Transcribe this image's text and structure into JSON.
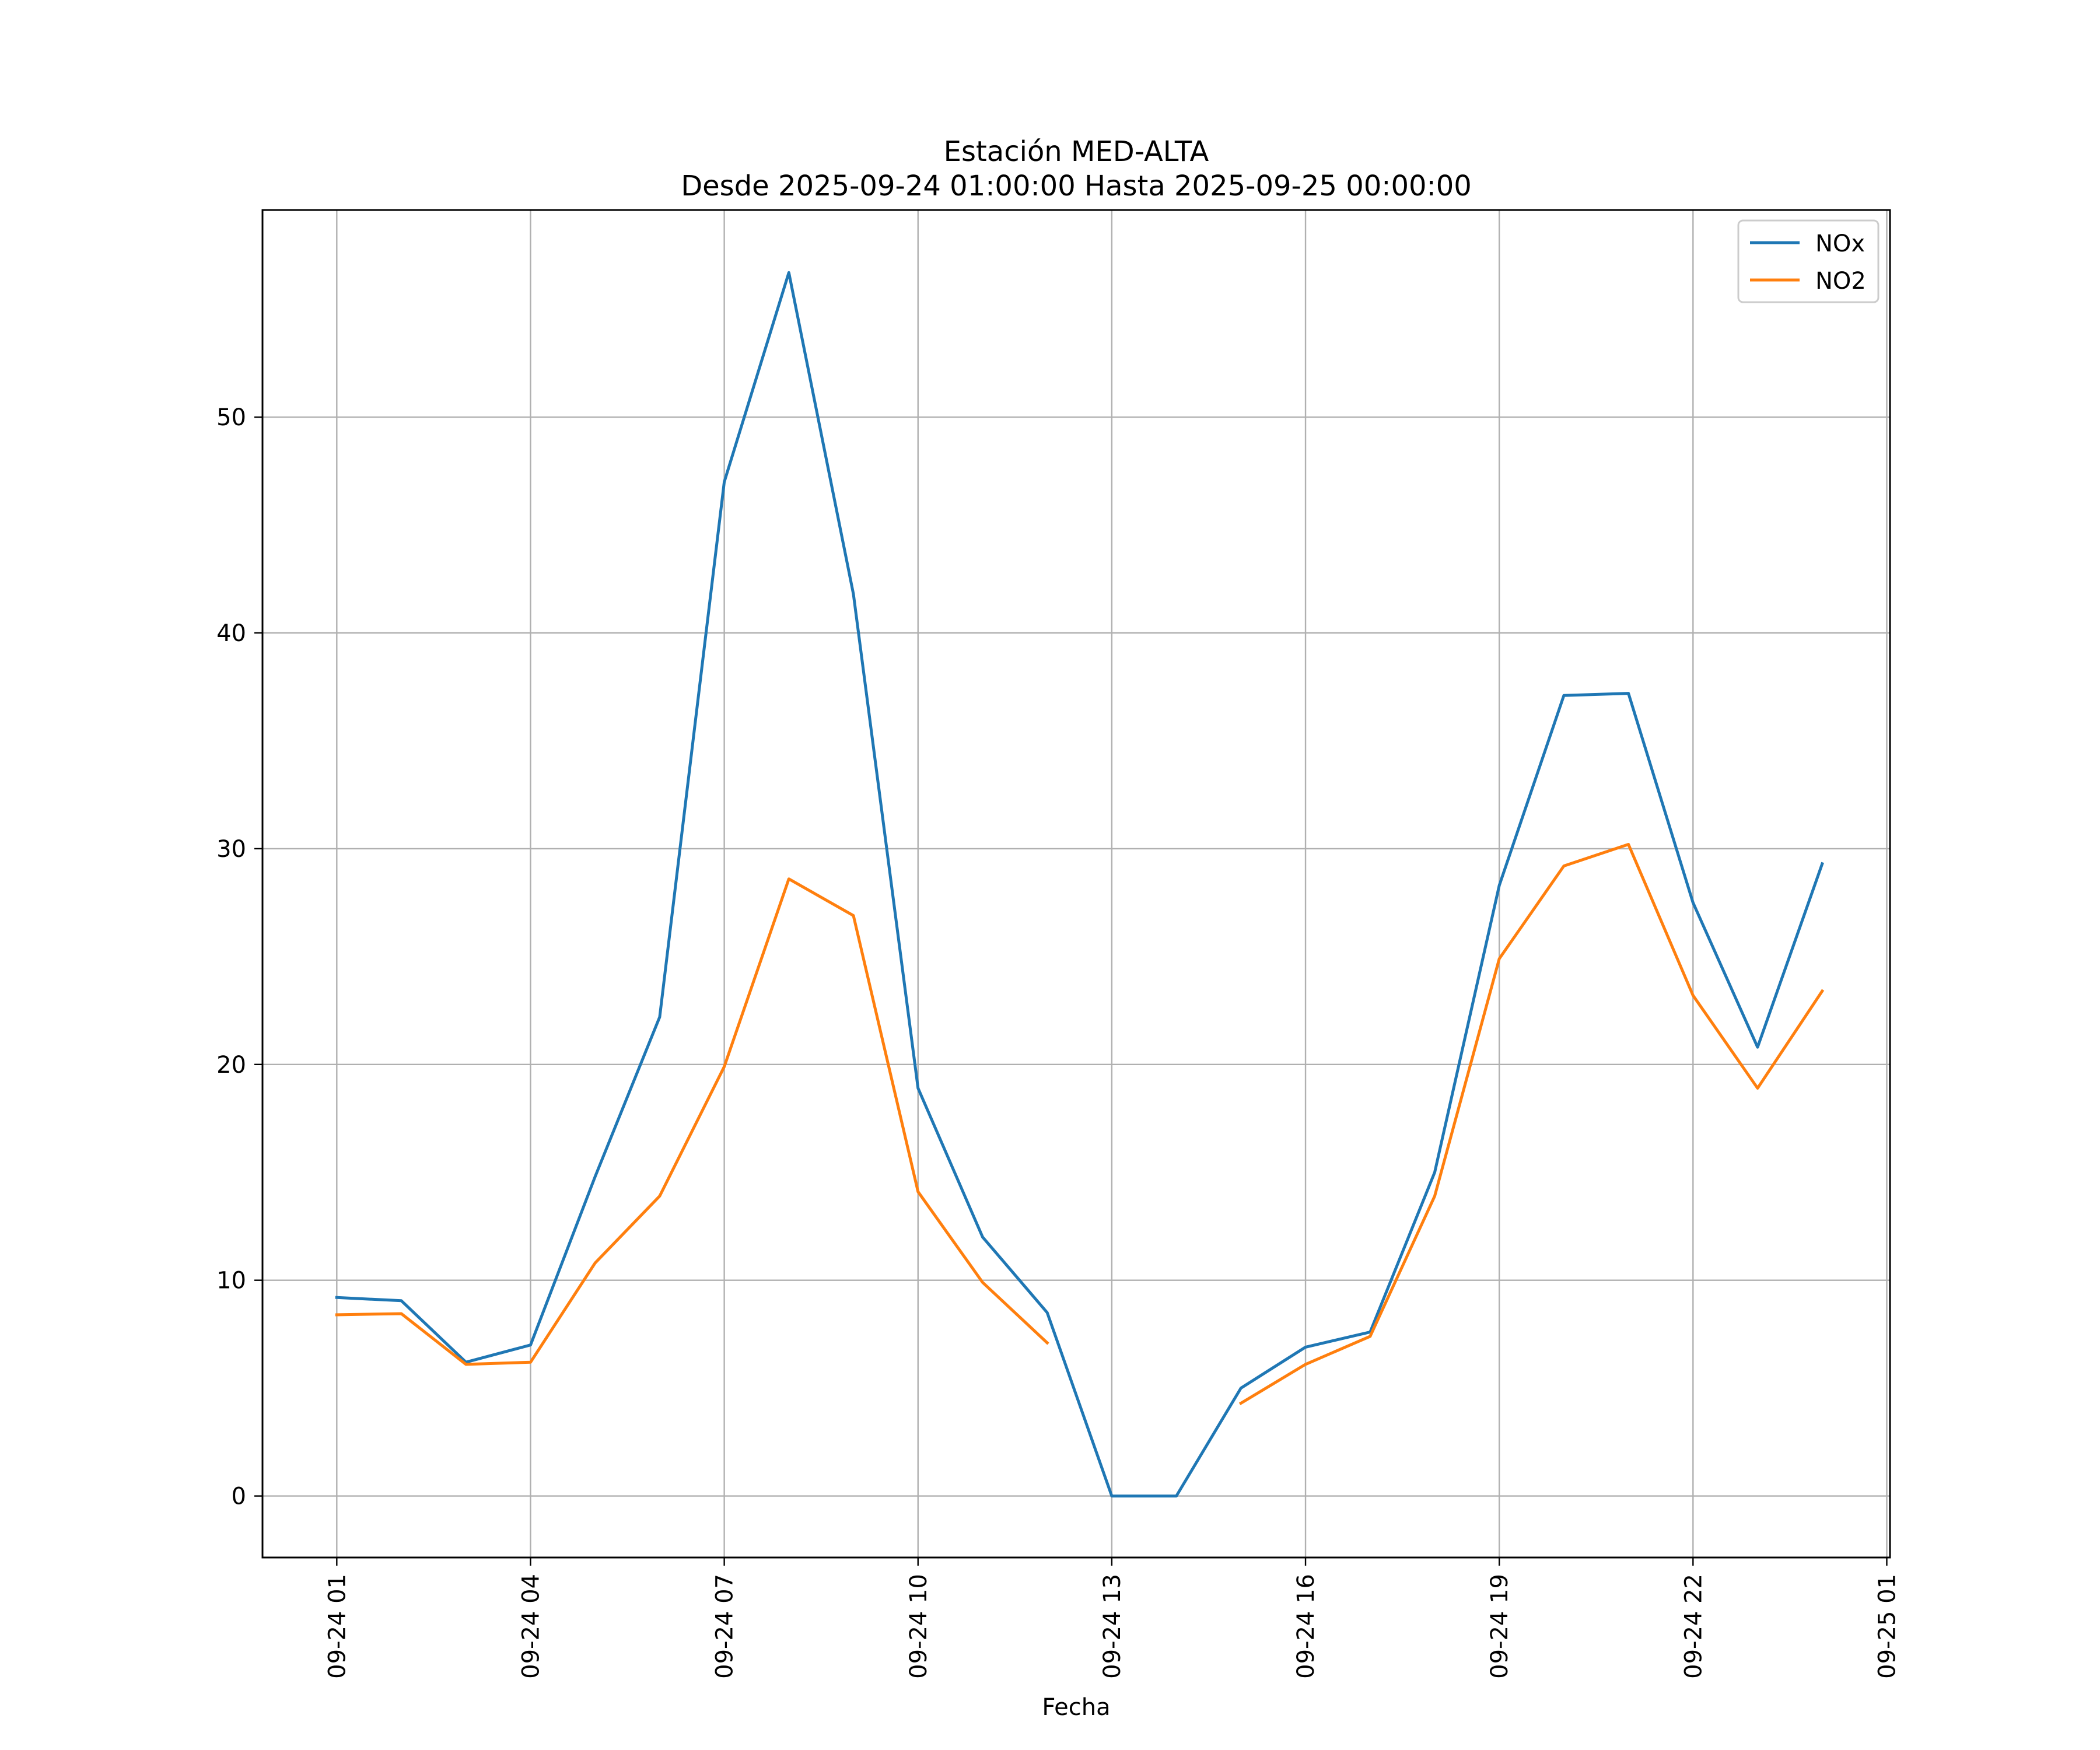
{
  "chart_data": {
    "type": "line",
    "title_line1": "Estación MED-ALTA",
    "title_line2": "Desde 2025-09-24 01:00:00 Hasta 2025-09-25 00:00:00",
    "xlabel": "Fecha",
    "ylabel": "",
    "x_hours": [
      1,
      2,
      3,
      4,
      5,
      6,
      7,
      8,
      9,
      10,
      11,
      12,
      13,
      14,
      15,
      16,
      17,
      18,
      19,
      20,
      21,
      22,
      23,
      24
    ],
    "x_ticks": [
      {
        "hour": 1,
        "label": "09-24 01"
      },
      {
        "hour": 4,
        "label": "09-24 04"
      },
      {
        "hour": 7,
        "label": "09-24 07"
      },
      {
        "hour": 10,
        "label": "09-24 10"
      },
      {
        "hour": 13,
        "label": "09-24 13"
      },
      {
        "hour": 16,
        "label": "09-24 16"
      },
      {
        "hour": 19,
        "label": "09-24 19"
      },
      {
        "hour": 22,
        "label": "09-24 22"
      },
      {
        "hour": 25,
        "label": "09-25 01"
      }
    ],
    "y_ticks": [
      {
        "value": 0,
        "label": "0"
      },
      {
        "value": 10,
        "label": "10"
      },
      {
        "value": 20,
        "label": "20"
      },
      {
        "value": 30,
        "label": "30"
      },
      {
        "value": 40,
        "label": "40"
      },
      {
        "value": 50,
        "label": "50"
      }
    ],
    "xlim": [
      -0.15,
      25.05
    ],
    "ylim": [
      -2.85,
      59.6
    ],
    "grid": true,
    "legend_position": "upper right",
    "series": [
      {
        "name": "NOx",
        "color": "#1f77b4",
        "values": [
          9.2,
          9.05,
          6.2,
          7.0,
          14.8,
          22.2,
          47.0,
          56.7,
          41.8,
          18.9,
          12.0,
          8.5,
          0.0,
          0.0,
          5.0,
          6.9,
          7.6,
          15.0,
          28.3,
          37.1,
          37.2,
          27.5,
          20.8,
          29.3
        ]
      },
      {
        "name": "NO2",
        "color": "#ff7f0e",
        "values": [
          8.4,
          8.45,
          6.1,
          6.2,
          10.8,
          13.9,
          19.9,
          28.6,
          26.9,
          14.1,
          9.9,
          7.1,
          null,
          null,
          4.3,
          6.1,
          7.4,
          13.9,
          24.9,
          29.2,
          30.2,
          23.2,
          18.9,
          23.4
        ]
      }
    ]
  }
}
